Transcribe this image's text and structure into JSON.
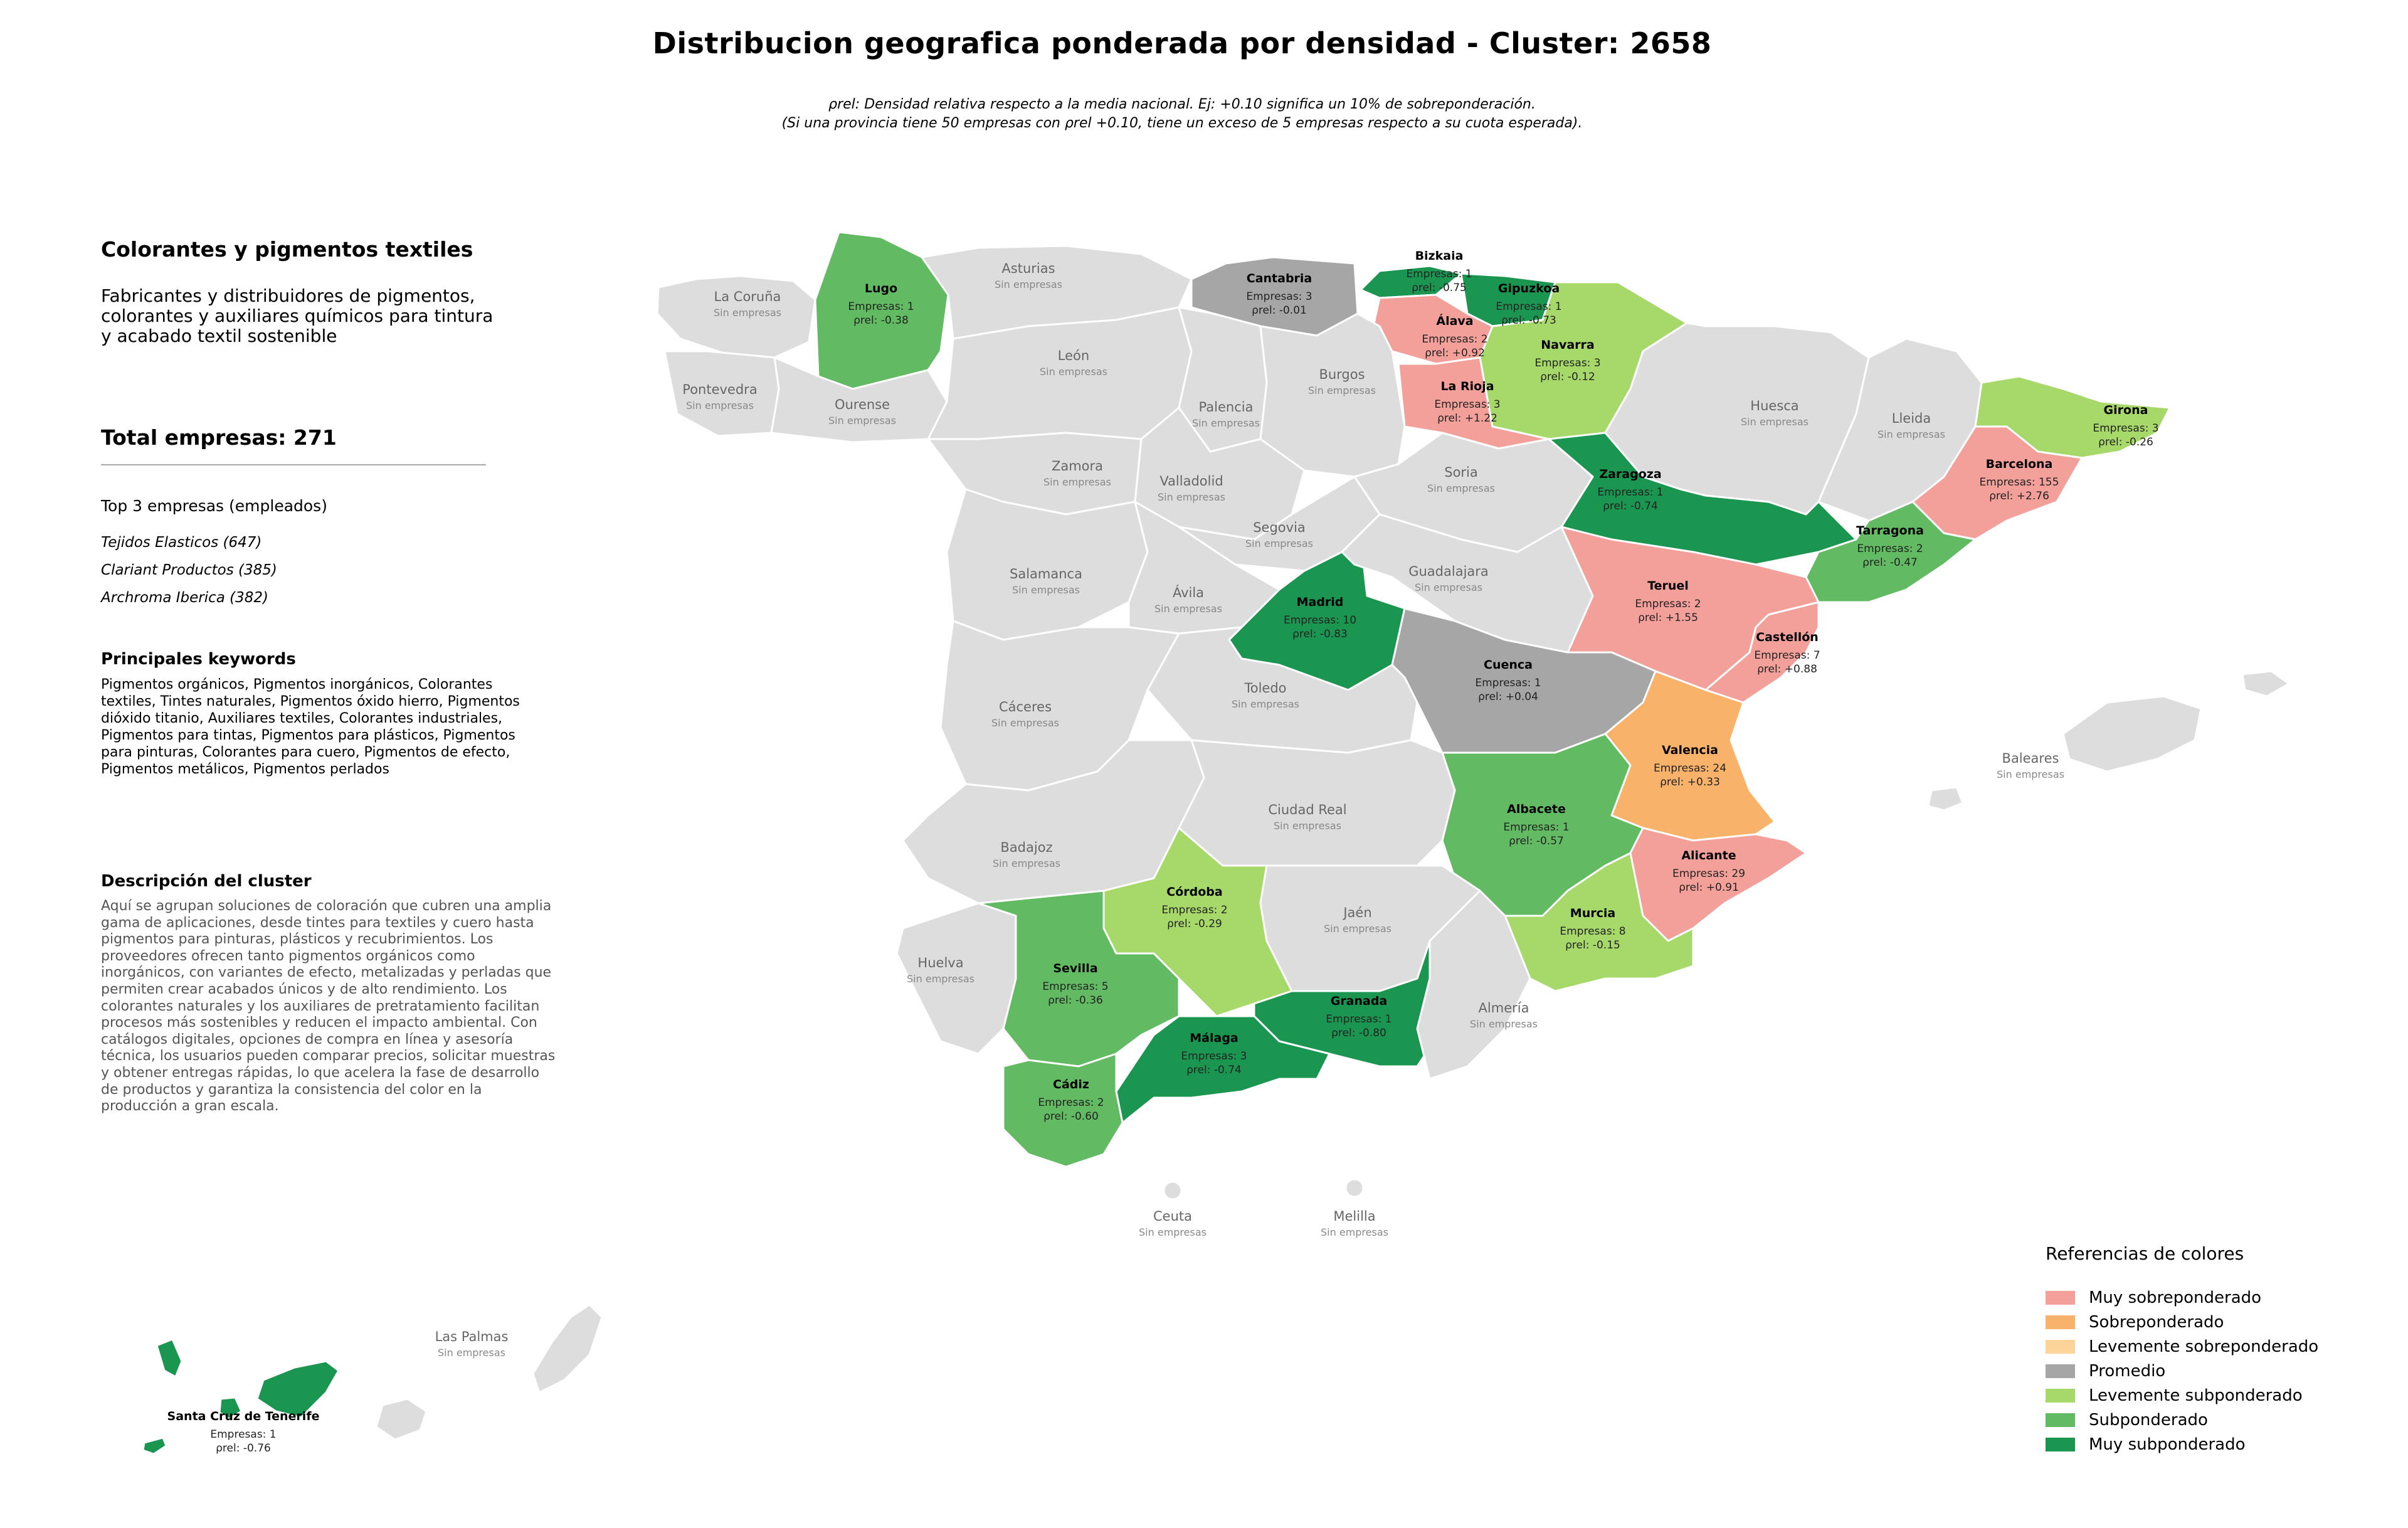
{
  "title": "Distribucion geografica ponderada por densidad - Cluster: 2658",
  "note_line1": "ρrel: Densidad relativa respecto a la media nacional. Ej: +0.10 significa un 10% de sobreponderación.",
  "note_line2": "(Si una provincia tiene 50 empresas con ρrel +0.10, tiene un exceso de 5 empresas respecto a su cuota esperada).",
  "panel": {
    "title": "Colorantes y pigmentos textiles",
    "description": "Fabricantes y distribuidores de pigmentos, colorantes y auxiliares químicos para tintura y acabado textil sostenible",
    "total": "Total empresas: 271",
    "top3_title": "Top 3 empresas (empleados)",
    "top3": [
      "Tejidos Elasticos (647)",
      "Clariant Productos (385)",
      "Archroma Iberica (382)"
    ],
    "keywords_title": "Principales keywords",
    "keywords": "Pigmentos orgánicos, Pigmentos inorgánicos, Colorantes textiles, Tintes naturales, Pigmentos óxido hierro, Pigmentos dióxido titanio, Auxiliares textiles, Colorantes industriales, Pigmentos para tintas, Pigmentos para plásticos, Pigmentos para pinturas, Colorantes para cuero, Pigmentos de efecto, Pigmentos metálicos, Pigmentos perlados",
    "cluster_desc_title": "Descripción del cluster",
    "cluster_desc": "Aquí se agrupan soluciones de coloración que cubren una amplia gama de aplicaciones, desde tintes para textiles y cuero hasta pigmentos para pinturas, plásticos y recubrimientos. Los proveedores ofrecen tanto pigmentos orgánicos como inorgánicos, con variantes de efecto, metalizadas y perladas que permiten crear acabados únicos y de alto rendimiento. Los colorantes naturales y los auxiliares de pretratamiento facilitan procesos más sostenibles y reducen el impacto ambiental. Con catálogos digitales, opciones de compra en línea y asesoría técnica, los usuarios pueden comparar precios, solicitar muestras y obtener entregas rápidas, lo que acelera la fase de desarrollo de productos y garantiza la consistencia del color en la producción a gran escala."
  },
  "colors": {
    "muy_sobre": "#f4a09a",
    "sobre": "#f9b26a",
    "lev_sobre": "#fcd49a",
    "promedio": "#a6a6a6",
    "lev_sub": "#a7d86a",
    "sub": "#62bb62",
    "muy_sub": "#1a9650",
    "empty": "#dddddd",
    "border": "#ffffff"
  },
  "legend": {
    "title": "Referencias de colores",
    "items": [
      {
        "key": "muy_sobre",
        "label": "Muy sobreponderado"
      },
      {
        "key": "sobre",
        "label": "Sobreponderado"
      },
      {
        "key": "lev_sobre",
        "label": "Levemente sobreponderado"
      },
      {
        "key": "promedio",
        "label": "Promedio"
      },
      {
        "key": "lev_sub",
        "label": "Levemente subponderado"
      },
      {
        "key": "sub",
        "label": "Subponderado"
      },
      {
        "key": "muy_sub",
        "label": "Muy subponderado"
      }
    ]
  },
  "empresas_prefix": "Empresas:",
  "rho_label": "ρrel:",
  "no_companies": "Sin empresas",
  "provinces": [
    {
      "id": "lugo",
      "name": "Lugo",
      "empresas": 1,
      "rho": "-0.38",
      "cat": "sub"
    },
    {
      "id": "cantabria",
      "name": "Cantabria",
      "empresas": 3,
      "rho": "-0.01",
      "cat": "promedio"
    },
    {
      "id": "bizkaia",
      "name": "Bizkaia",
      "empresas": 1,
      "rho": "-0.75",
      "cat": "muy_sub"
    },
    {
      "id": "gipuzkoa",
      "name": "Gipuzkoa",
      "empresas": 1,
      "rho": "-0.73",
      "cat": "muy_sub"
    },
    {
      "id": "alava",
      "name": "Álava",
      "empresas": 2,
      "rho": "+0.92",
      "cat": "muy_sobre"
    },
    {
      "id": "navarra",
      "name": "Navarra",
      "empresas": 3,
      "rho": "-0.12",
      "cat": "lev_sub"
    },
    {
      "id": "larioja",
      "name": "La Rioja",
      "empresas": 3,
      "rho": "+1.22",
      "cat": "muy_sobre"
    },
    {
      "id": "girona",
      "name": "Girona",
      "empresas": 3,
      "rho": "-0.26",
      "cat": "lev_sub"
    },
    {
      "id": "barcelona",
      "name": "Barcelona",
      "empresas": 155,
      "rho": "+2.76",
      "cat": "muy_sobre"
    },
    {
      "id": "zaragoza",
      "name": "Zaragoza",
      "empresas": 1,
      "rho": "-0.74",
      "cat": "muy_sub"
    },
    {
      "id": "tarragona",
      "name": "Tarragona",
      "empresas": 2,
      "rho": "-0.47",
      "cat": "sub"
    },
    {
      "id": "teruel",
      "name": "Teruel",
      "empresas": 2,
      "rho": "+1.55",
      "cat": "muy_sobre"
    },
    {
      "id": "castellon",
      "name": "Castellón",
      "empresas": 7,
      "rho": "+0.88",
      "cat": "muy_sobre"
    },
    {
      "id": "madrid",
      "name": "Madrid",
      "empresas": 10,
      "rho": "-0.83",
      "cat": "muy_sub"
    },
    {
      "id": "cuenca",
      "name": "Cuenca",
      "empresas": 1,
      "rho": "+0.04",
      "cat": "promedio"
    },
    {
      "id": "valencia",
      "name": "Valencia",
      "empresas": 24,
      "rho": "+0.33",
      "cat": "sobre"
    },
    {
      "id": "albacete",
      "name": "Albacete",
      "empresas": 1,
      "rho": "-0.57",
      "cat": "sub"
    },
    {
      "id": "alicante",
      "name": "Alicante",
      "empresas": 29,
      "rho": "+0.91",
      "cat": "muy_sobre"
    },
    {
      "id": "cordoba",
      "name": "Córdoba",
      "empresas": 2,
      "rho": "-0.29",
      "cat": "lev_sub"
    },
    {
      "id": "murcia",
      "name": "Murcia",
      "empresas": 8,
      "rho": "-0.15",
      "cat": "lev_sub"
    },
    {
      "id": "sevilla",
      "name": "Sevilla",
      "empresas": 5,
      "rho": "-0.36",
      "cat": "sub"
    },
    {
      "id": "granada",
      "name": "Granada",
      "empresas": 1,
      "rho": "-0.80",
      "cat": "muy_sub"
    },
    {
      "id": "malaga",
      "name": "Málaga",
      "empresas": 3,
      "rho": "-0.74",
      "cat": "muy_sub"
    },
    {
      "id": "cadiz",
      "name": "Cádiz",
      "empresas": 2,
      "rho": "-0.60",
      "cat": "sub"
    },
    {
      "id": "tenerife",
      "name": "Santa Cruz de Tenerife",
      "empresas": 1,
      "rho": "-0.76",
      "cat": "muy_sub"
    },
    {
      "id": "coruna",
      "name": "La Coruña",
      "cat": "empty"
    },
    {
      "id": "pontevedra",
      "name": "Pontevedra",
      "cat": "empty"
    },
    {
      "id": "ourense",
      "name": "Ourense",
      "cat": "empty"
    },
    {
      "id": "asturias",
      "name": "Asturias",
      "cat": "empty"
    },
    {
      "id": "leon",
      "name": "León",
      "cat": "empty"
    },
    {
      "id": "palencia",
      "name": "Palencia",
      "cat": "empty"
    },
    {
      "id": "burgos",
      "name": "Burgos",
      "cat": "empty"
    },
    {
      "id": "zamora",
      "name": "Zamora",
      "cat": "empty"
    },
    {
      "id": "valladolid",
      "name": "Valladolid",
      "cat": "empty"
    },
    {
      "id": "soria",
      "name": "Soria",
      "cat": "empty"
    },
    {
      "id": "segovia",
      "name": "Segovia",
      "cat": "empty"
    },
    {
      "id": "salamanca",
      "name": "Salamanca",
      "cat": "empty"
    },
    {
      "id": "avila",
      "name": "Ávila",
      "cat": "empty"
    },
    {
      "id": "guadalajara",
      "name": "Guadalajara",
      "cat": "empty"
    },
    {
      "id": "huesca",
      "name": "Huesca",
      "cat": "empty"
    },
    {
      "id": "lleida",
      "name": "Lleida",
      "cat": "empty"
    },
    {
      "id": "caceres",
      "name": "Cáceres",
      "cat": "empty"
    },
    {
      "id": "toledo",
      "name": "Toledo",
      "cat": "empty"
    },
    {
      "id": "ciudadreal",
      "name": "Ciudad Real",
      "cat": "empty"
    },
    {
      "id": "badajoz",
      "name": "Badajoz",
      "cat": "empty"
    },
    {
      "id": "jaen",
      "name": "Jaén",
      "cat": "empty"
    },
    {
      "id": "huelva",
      "name": "Huelva",
      "cat": "empty"
    },
    {
      "id": "almeria",
      "name": "Almería",
      "cat": "empty"
    },
    {
      "id": "baleares",
      "name": "Baleares",
      "cat": "empty"
    },
    {
      "id": "ceuta",
      "name": "Ceuta",
      "cat": "empty"
    },
    {
      "id": "melilla",
      "name": "Melilla",
      "cat": "empty"
    },
    {
      "id": "laspalmas",
      "name": "Las Palmas",
      "cat": "empty"
    }
  ]
}
